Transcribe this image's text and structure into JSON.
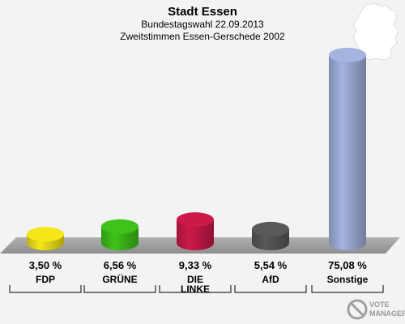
{
  "header": {
    "title": "Stadt Essen",
    "subtitle1": "Bundestagswahl 22.09.2013",
    "subtitle2": "Zweitstimmen Essen-Gerschede 2002"
  },
  "watermark": {
    "line1": "VOTE",
    "line2": "MANAGER"
  },
  "chart_data": {
    "type": "bar",
    "categories": [
      "FDP",
      "GRÜNE",
      "DIE LINKE",
      "AfD",
      "Sonstige"
    ],
    "values": [
      3.5,
      6.56,
      9.33,
      5.54,
      75.08
    ],
    "value_labels": [
      "3,50 %",
      "6,56 %",
      "9,33 %",
      "5,54 %",
      "75,08 %"
    ],
    "colors": [
      "#f5e61a",
      "#3fc21a",
      "#cc1a4a",
      "#595959",
      "#a4b2e0"
    ],
    "unit": "%",
    "title": "Stadt Essen",
    "ylim": [
      0,
      75.08
    ],
    "grid": false,
    "legend": "none"
  }
}
